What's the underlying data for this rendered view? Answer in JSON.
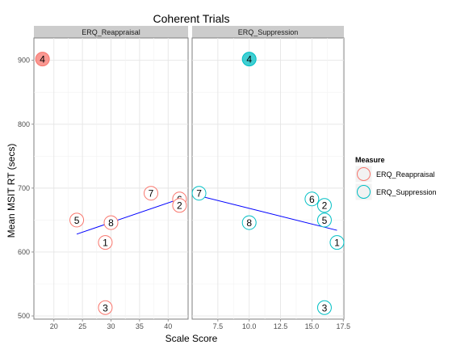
{
  "chart_data": {
    "type": "scatter",
    "title": "Coherent Trials",
    "xlabel": "Scale Score",
    "ylabel": "Mean MSIT RT (secs)",
    "ylim": [
      495,
      935
    ],
    "yticks": [
      500,
      600,
      700,
      800,
      900
    ],
    "grid": true,
    "legend": {
      "title": "Measure",
      "position": "right",
      "entries": [
        {
          "label": "ERQ_Reappraisal",
          "color": "#F8766D"
        },
        {
          "label": "ERQ_Suppression",
          "color": "#00BFC4"
        }
      ]
    },
    "panels": [
      {
        "strip": "ERQ_Reappraisal",
        "color": "#F8766D",
        "xlim": [
          16.5,
          43.5
        ],
        "xticks": [
          "20",
          "25",
          "30",
          "35",
          "40"
        ],
        "points": [
          {
            "label": "4",
            "x": 18,
            "y": 902,
            "filled": true
          },
          {
            "label": "5",
            "x": 24,
            "y": 650
          },
          {
            "label": "8",
            "x": 30,
            "y": 646
          },
          {
            "label": "1",
            "x": 29,
            "y": 615
          },
          {
            "label": "3",
            "x": 29,
            "y": 513
          },
          {
            "label": "7",
            "x": 37,
            "y": 692
          },
          {
            "label": "6",
            "x": 42,
            "y": 683
          },
          {
            "label": "2",
            "x": 42,
            "y": 673
          }
        ],
        "fit_line": {
          "x": [
            24,
            42
          ],
          "y": [
            628,
            683
          ]
        }
      },
      {
        "strip": "ERQ_Suppression",
        "color": "#00BFC4",
        "xlim": [
          5.45,
          17.55
        ],
        "xticks": [
          "7.5",
          "10.0",
          "12.5",
          "15.0",
          "17.5"
        ],
        "points": [
          {
            "label": "4",
            "x": 10,
            "y": 902,
            "filled": true
          },
          {
            "label": "7",
            "x": 6,
            "y": 692
          },
          {
            "label": "6",
            "x": 15,
            "y": 683
          },
          {
            "label": "2",
            "x": 16,
            "y": 673
          },
          {
            "label": "5",
            "x": 16,
            "y": 650
          },
          {
            "label": "8",
            "x": 10,
            "y": 646
          },
          {
            "label": "1",
            "x": 17,
            "y": 615
          },
          {
            "label": "3",
            "x": 16,
            "y": 513
          }
        ],
        "fit_line": {
          "x": [
            6,
            17
          ],
          "y": [
            688,
            634
          ]
        }
      }
    ]
  }
}
